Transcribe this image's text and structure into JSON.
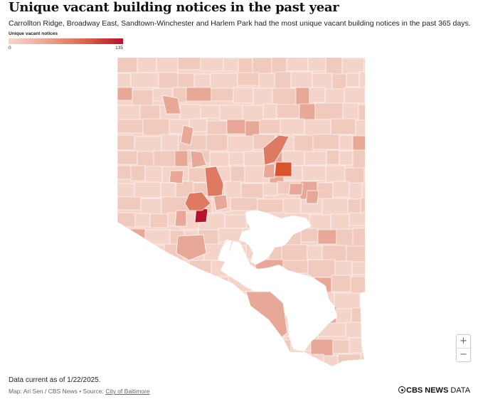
{
  "header": {
    "title": "Unique vacant building notices in the past year",
    "subtitle": "Carrollton Ridge, Broadway East, Sandtown-Winchester and Harlem Park had the most unique vacant building notices in the past 365 days."
  },
  "legend": {
    "title": "Unique vacant notices",
    "min_label": "0",
    "max_label": "135",
    "colors": [
      "#f5d5cc",
      "#eaa594",
      "#dc6547",
      "#b8112c"
    ]
  },
  "map": {
    "colors": {
      "base": "#f4d3c9",
      "light": "#f1cabe",
      "medium": "#e8a897",
      "strong": "#dd7a61",
      "high": "#d9532f",
      "max": "#b8112c",
      "water": "#ffffff",
      "border": "#ffffff"
    }
  },
  "zoom": {
    "in_label": "+",
    "out_label": "−"
  },
  "footer": {
    "data_note": "Data current as of 1/22/2025.",
    "credit_prefix": "Map: Ari Sen / CBS News • Source: ",
    "credit_link": "City of Baltimore",
    "logo_brand": "CBS NEWS",
    "logo_suffix": " DATA"
  }
}
